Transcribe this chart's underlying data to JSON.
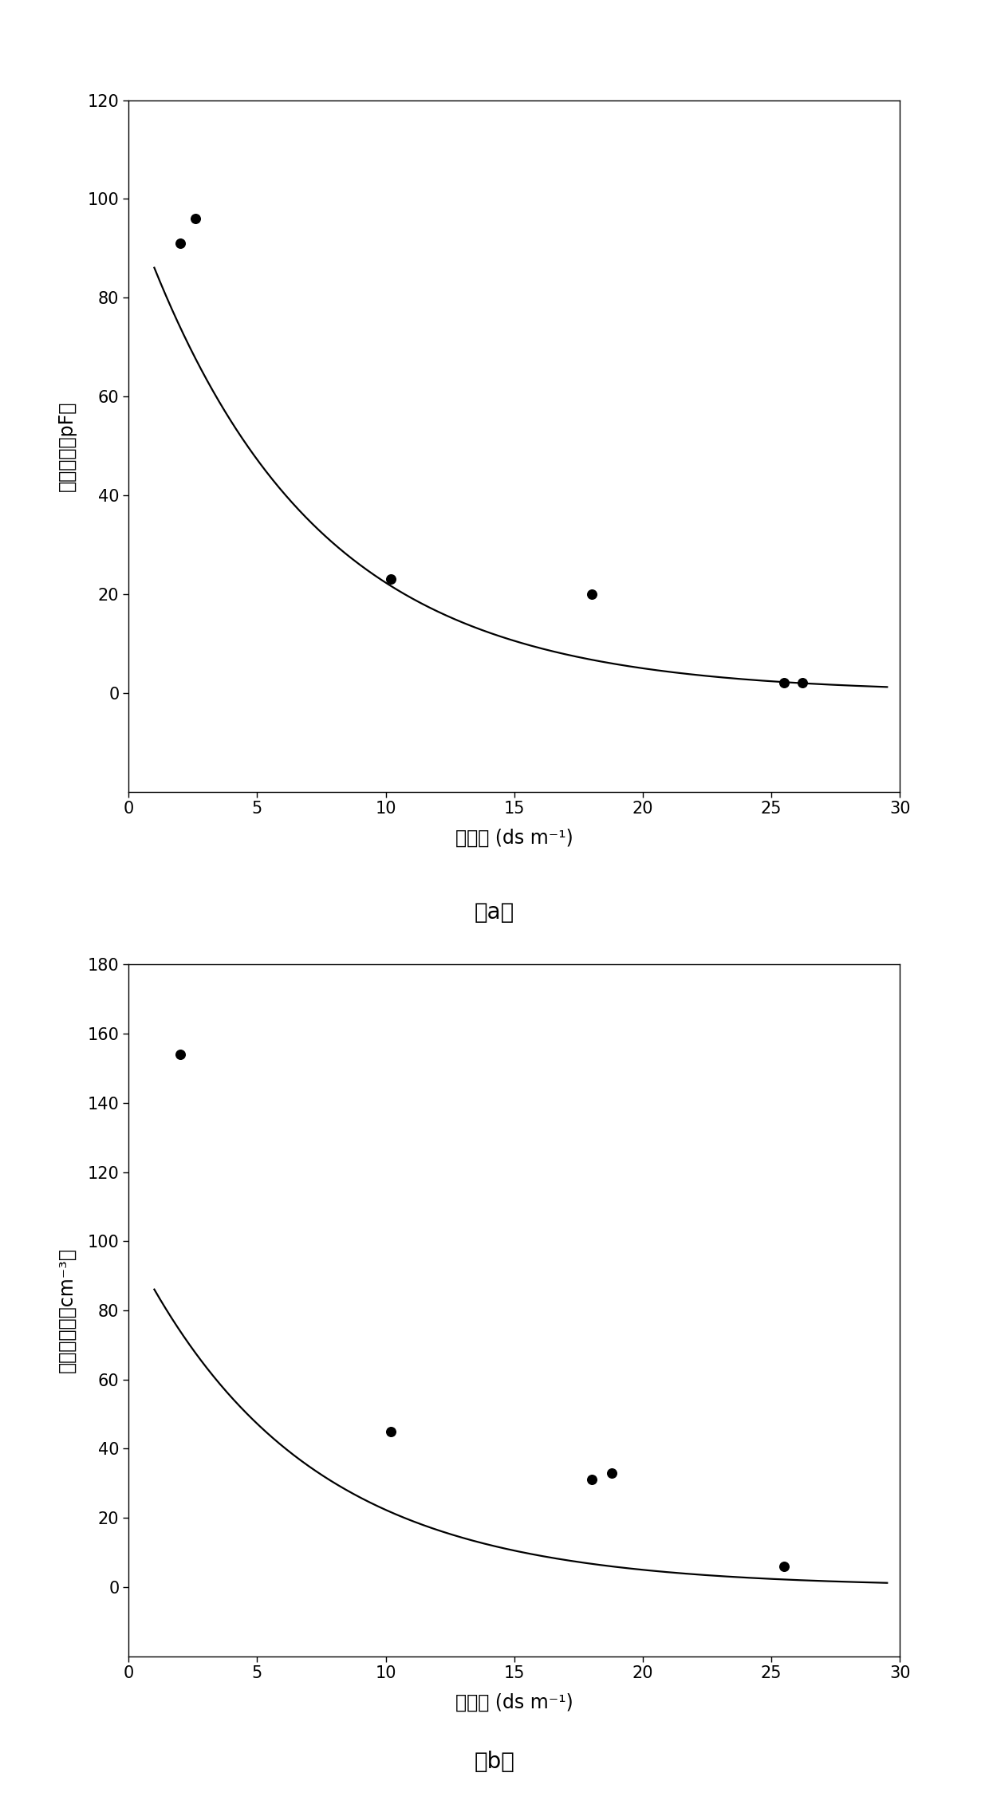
{
  "panel_a": {
    "scatter_x": [
      2.0,
      2.6,
      10.2,
      18.0,
      25.5,
      26.2
    ],
    "scatter_y": [
      91,
      96,
      23,
      20,
      2,
      2
    ],
    "xlim": [
      0,
      30
    ],
    "ylim": [
      -20,
      120
    ],
    "xticks": [
      0,
      5,
      10,
      15,
      20,
      25,
      30
    ],
    "yticks": [
      0,
      20,
      40,
      60,
      80,
      100,
      120
    ],
    "xlabel": "盐浓度 (ds m⁻¹)",
    "ylabel": "生理电容（pF）",
    "label": "（a）",
    "curve_x_start": 1.0,
    "curve_x_end": 29.5
  },
  "panel_b": {
    "scatter_x": [
      2.0,
      10.2,
      18.0,
      18.8,
      25.5
    ],
    "scatter_y": [
      154,
      45,
      31,
      33,
      6
    ],
    "xlim": [
      0,
      30
    ],
    "ylim": [
      -20,
      180
    ],
    "xticks": [
      0,
      5,
      10,
      15,
      20,
      25,
      30
    ],
    "yticks": [
      0,
      20,
      40,
      60,
      80,
      100,
      120,
      140,
      160,
      180
    ],
    "xlabel": "盐浓度 (ds m⁻¹)",
    "ylabel": "叶片紧张度（cm⁻³）",
    "label": "（b）",
    "curve_x_start": 1.0,
    "curve_x_end": 29.5
  },
  "background_color": "#ffffff",
  "dot_color": "#000000",
  "line_color": "#000000",
  "dot_size": 70,
  "line_width": 1.6,
  "font_size_label": 17,
  "font_size_tick": 15,
  "font_size_caption": 20
}
